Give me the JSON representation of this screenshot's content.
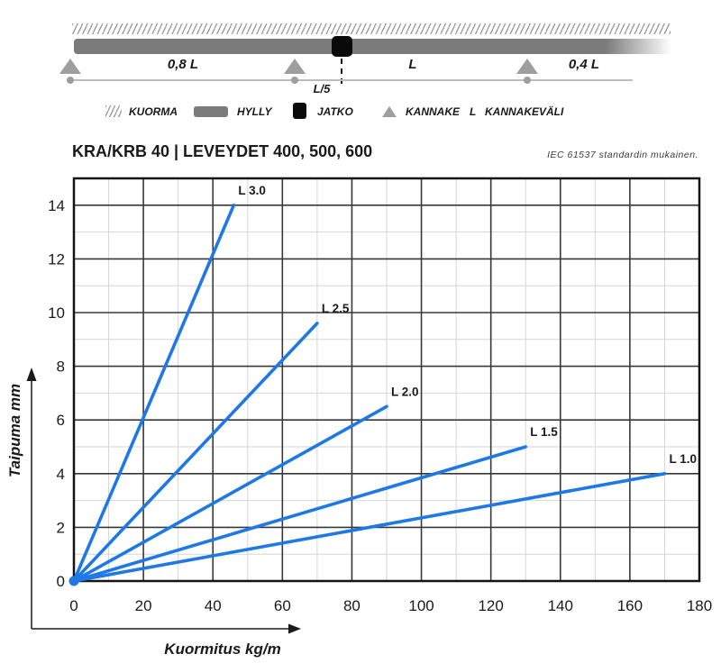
{
  "diagram": {
    "span_left": "0,8 L",
    "span_mid": "L",
    "span_right": "0,4 L",
    "joint_offset": "L/5",
    "legend": [
      {
        "icon": "hatch-icon",
        "label": "KUORMA"
      },
      {
        "icon": "bar-icon",
        "label": "HYLLY"
      },
      {
        "icon": "square-icon",
        "label": "JATKO"
      },
      {
        "icon": "triangle-icon",
        "label": "KANNAKE"
      },
      {
        "icon": "letter-L",
        "label": "KANNAKEVÄLI"
      }
    ],
    "legend_letter": "L"
  },
  "header": {
    "title": "KRA/KRB 40 | LEVEYDET 400, 500, 600",
    "note": "IEC 61537 standardin mukainen."
  },
  "chart_data": {
    "type": "line",
    "title": "KRA/KRB 40 | LEVEYDET 400, 500, 600",
    "xlabel": "Kuormitus kg/m",
    "ylabel": "Taipuma mm",
    "xlim": [
      0,
      180
    ],
    "ylim": [
      0,
      15
    ],
    "x_major_ticks": [
      0,
      20,
      40,
      60,
      80,
      100,
      120,
      140,
      160,
      180
    ],
    "y_major_ticks": [
      0,
      2,
      4,
      6,
      8,
      10,
      12,
      14
    ],
    "x_minor_step": 10,
    "y_minor_step": 1,
    "grid": true,
    "legend_position": "inline-labels",
    "line_color": "#1e78e6",
    "series": [
      {
        "name": "L 3.0",
        "points": [
          [
            0,
            0
          ],
          [
            46,
            14
          ]
        ]
      },
      {
        "name": "L 2.5",
        "points": [
          [
            0,
            0
          ],
          [
            70,
            9.6
          ]
        ]
      },
      {
        "name": "L 2.0",
        "points": [
          [
            0,
            0
          ],
          [
            90,
            6.5
          ]
        ]
      },
      {
        "name": "L 1.5",
        "points": [
          [
            0,
            0
          ],
          [
            130,
            5.0
          ]
        ]
      },
      {
        "name": "L 1.0",
        "points": [
          [
            0,
            0
          ],
          [
            170,
            4.0
          ]
        ]
      }
    ]
  }
}
